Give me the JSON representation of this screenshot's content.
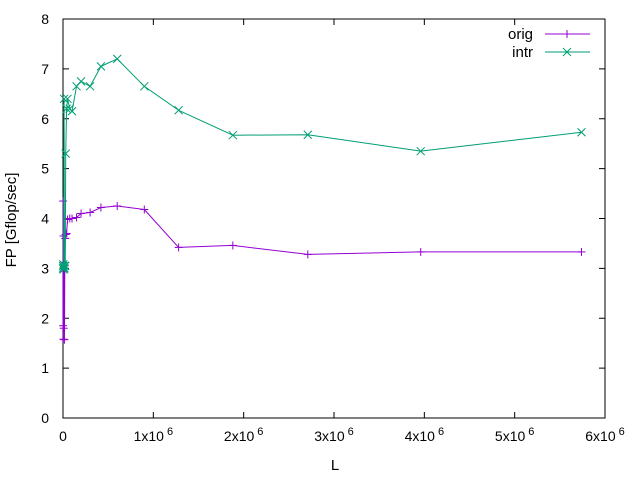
{
  "chart_data": {
    "type": "line",
    "title": "",
    "xlabel": "L",
    "ylabel": "FP [Gflop/sec]",
    "xlim": [
      0,
      6000000
    ],
    "ylim": [
      0,
      8
    ],
    "grid": false,
    "legend_position": "top-right",
    "x_ticks": [
      {
        "value": 0,
        "label": "0",
        "exp": ""
      },
      {
        "value": 1000000,
        "label": "1x10",
        "exp": "6"
      },
      {
        "value": 2000000,
        "label": "2x10",
        "exp": "6"
      },
      {
        "value": 3000000,
        "label": "3x10",
        "exp": "6"
      },
      {
        "value": 4000000,
        "label": "4x10",
        "exp": "6"
      },
      {
        "value": 5000000,
        "label": "5x10",
        "exp": "6"
      },
      {
        "value": 6000000,
        "label": "6x10",
        "exp": "6"
      }
    ],
    "y_ticks": [
      {
        "value": 0,
        "label": "0"
      },
      {
        "value": 1,
        "label": "1"
      },
      {
        "value": 2,
        "label": "2"
      },
      {
        "value": 3,
        "label": "3"
      },
      {
        "value": 4,
        "label": "4"
      },
      {
        "value": 5,
        "label": "5"
      },
      {
        "value": 6,
        "label": "6"
      },
      {
        "value": 7,
        "label": "7"
      },
      {
        "value": 8,
        "label": "8"
      }
    ],
    "series": [
      {
        "name": "orig",
        "color": "#9400d3",
        "marker": "plus",
        "x": [
          1000,
          2000,
          4000,
          6000,
          8000,
          12000,
          16000,
          20000,
          25000,
          30000,
          40000,
          50000,
          75000,
          100000,
          150000,
          200000,
          300000,
          420000,
          600000,
          900000,
          1280000,
          1880000,
          2710000,
          3960000,
          5740000
        ],
        "y": [
          1.85,
          4.35,
          1.58,
          3.65,
          1.8,
          3.0,
          1.57,
          3.05,
          3.6,
          3.68,
          3.7,
          3.98,
          4.0,
          4.0,
          4.02,
          4.1,
          4.12,
          4.22,
          4.25,
          4.18,
          3.42,
          3.46,
          3.28,
          3.33,
          3.33
        ]
      },
      {
        "name": "intr",
        "color": "#009e73",
        "marker": "x",
        "x": [
          1000,
          2000,
          4000,
          6000,
          8000,
          12000,
          16000,
          20000,
          25000,
          30000,
          40000,
          50000,
          75000,
          100000,
          150000,
          200000,
          300000,
          420000,
          600000,
          900000,
          1280000,
          1880000,
          2710000,
          3960000,
          5740000
        ],
        "y": [
          3.0,
          3.05,
          3.08,
          2.98,
          3.02,
          6.4,
          3.0,
          3.05,
          3.05,
          5.3,
          6.2,
          6.4,
          6.2,
          6.15,
          6.65,
          6.75,
          6.65,
          7.05,
          7.2,
          6.65,
          6.17,
          5.67,
          5.68,
          5.35,
          5.73
        ]
      }
    ]
  }
}
